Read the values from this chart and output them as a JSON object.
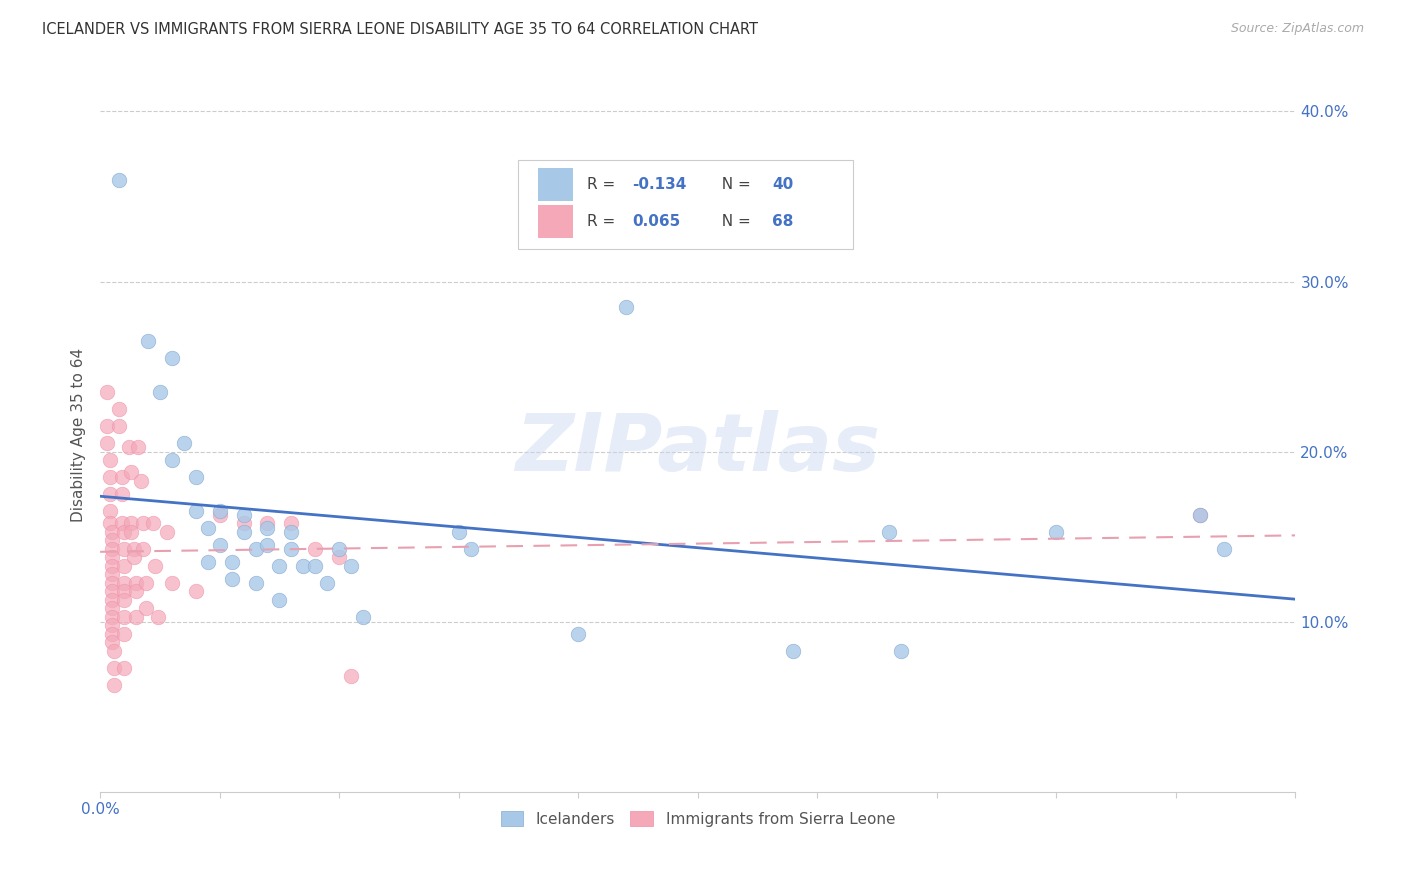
{
  "title": "ICELANDER VS IMMIGRANTS FROM SIERRA LEONE DISABILITY AGE 35 TO 64 CORRELATION CHART",
  "source": "Source: ZipAtlas.com",
  "ylabel": "Disability Age 35 to 64",
  "xlim": [
    0.0,
    0.5
  ],
  "ylim": [
    0.0,
    0.42
  ],
  "xticks": [
    0.0,
    0.05,
    0.1,
    0.15,
    0.2,
    0.25,
    0.3,
    0.35,
    0.4,
    0.45,
    0.5
  ],
  "xticklabels_sparse": {
    "0.0": "0.0%"
  },
  "yticks": [
    0.1,
    0.2,
    0.3,
    0.4
  ],
  "yticklabels": [
    "10.0%",
    "20.0%",
    "30.0%",
    "40.0%"
  ],
  "grid_color": "#cccccc",
  "background_color": "#ffffff",
  "watermark": "ZIPatlas",
  "blue_color": "#a8c8e8",
  "pink_color": "#f4a8b8",
  "blue_line_color": "#4472c4",
  "pink_line_color": "#e8a0b0",
  "tick_color": "#4472c4",
  "label_color": "#555555",
  "blue_scatter": [
    [
      0.008,
      0.36
    ],
    [
      0.02,
      0.265
    ],
    [
      0.025,
      0.235
    ],
    [
      0.03,
      0.255
    ],
    [
      0.03,
      0.195
    ],
    [
      0.035,
      0.205
    ],
    [
      0.04,
      0.185
    ],
    [
      0.04,
      0.165
    ],
    [
      0.045,
      0.155
    ],
    [
      0.045,
      0.135
    ],
    [
      0.05,
      0.165
    ],
    [
      0.05,
      0.145
    ],
    [
      0.055,
      0.135
    ],
    [
      0.055,
      0.125
    ],
    [
      0.06,
      0.163
    ],
    [
      0.06,
      0.153
    ],
    [
      0.065,
      0.143
    ],
    [
      0.065,
      0.123
    ],
    [
      0.07,
      0.155
    ],
    [
      0.07,
      0.145
    ],
    [
      0.075,
      0.133
    ],
    [
      0.075,
      0.113
    ],
    [
      0.08,
      0.153
    ],
    [
      0.08,
      0.143
    ],
    [
      0.085,
      0.133
    ],
    [
      0.09,
      0.133
    ],
    [
      0.095,
      0.123
    ],
    [
      0.1,
      0.143
    ],
    [
      0.105,
      0.133
    ],
    [
      0.11,
      0.103
    ],
    [
      0.15,
      0.153
    ],
    [
      0.155,
      0.143
    ],
    [
      0.2,
      0.093
    ],
    [
      0.22,
      0.285
    ],
    [
      0.29,
      0.083
    ],
    [
      0.33,
      0.153
    ],
    [
      0.335,
      0.083
    ],
    [
      0.4,
      0.153
    ],
    [
      0.46,
      0.163
    ],
    [
      0.47,
      0.143
    ]
  ],
  "pink_scatter": [
    [
      0.003,
      0.235
    ],
    [
      0.003,
      0.215
    ],
    [
      0.003,
      0.205
    ],
    [
      0.004,
      0.195
    ],
    [
      0.004,
      0.185
    ],
    [
      0.004,
      0.175
    ],
    [
      0.004,
      0.165
    ],
    [
      0.004,
      0.158
    ],
    [
      0.005,
      0.153
    ],
    [
      0.005,
      0.148
    ],
    [
      0.005,
      0.143
    ],
    [
      0.005,
      0.138
    ],
    [
      0.005,
      0.133
    ],
    [
      0.005,
      0.128
    ],
    [
      0.005,
      0.123
    ],
    [
      0.005,
      0.118
    ],
    [
      0.005,
      0.113
    ],
    [
      0.005,
      0.108
    ],
    [
      0.005,
      0.103
    ],
    [
      0.005,
      0.098
    ],
    [
      0.005,
      0.093
    ],
    [
      0.005,
      0.088
    ],
    [
      0.006,
      0.083
    ],
    [
      0.006,
      0.073
    ],
    [
      0.006,
      0.063
    ],
    [
      0.008,
      0.225
    ],
    [
      0.008,
      0.215
    ],
    [
      0.009,
      0.185
    ],
    [
      0.009,
      0.175
    ],
    [
      0.009,
      0.158
    ],
    [
      0.01,
      0.153
    ],
    [
      0.01,
      0.143
    ],
    [
      0.01,
      0.133
    ],
    [
      0.01,
      0.123
    ],
    [
      0.01,
      0.118
    ],
    [
      0.01,
      0.113
    ],
    [
      0.01,
      0.103
    ],
    [
      0.01,
      0.093
    ],
    [
      0.01,
      0.073
    ],
    [
      0.012,
      0.203
    ],
    [
      0.013,
      0.188
    ],
    [
      0.013,
      0.158
    ],
    [
      0.013,
      0.153
    ],
    [
      0.014,
      0.143
    ],
    [
      0.014,
      0.138
    ],
    [
      0.015,
      0.123
    ],
    [
      0.015,
      0.118
    ],
    [
      0.015,
      0.103
    ],
    [
      0.016,
      0.203
    ],
    [
      0.017,
      0.183
    ],
    [
      0.018,
      0.158
    ],
    [
      0.018,
      0.143
    ],
    [
      0.019,
      0.123
    ],
    [
      0.019,
      0.108
    ],
    [
      0.022,
      0.158
    ],
    [
      0.023,
      0.133
    ],
    [
      0.024,
      0.103
    ],
    [
      0.028,
      0.153
    ],
    [
      0.03,
      0.123
    ],
    [
      0.04,
      0.118
    ],
    [
      0.05,
      0.163
    ],
    [
      0.06,
      0.158
    ],
    [
      0.07,
      0.158
    ],
    [
      0.08,
      0.158
    ],
    [
      0.09,
      0.143
    ],
    [
      0.1,
      0.138
    ],
    [
      0.105,
      0.068
    ],
    [
      0.46,
      0.163
    ]
  ]
}
